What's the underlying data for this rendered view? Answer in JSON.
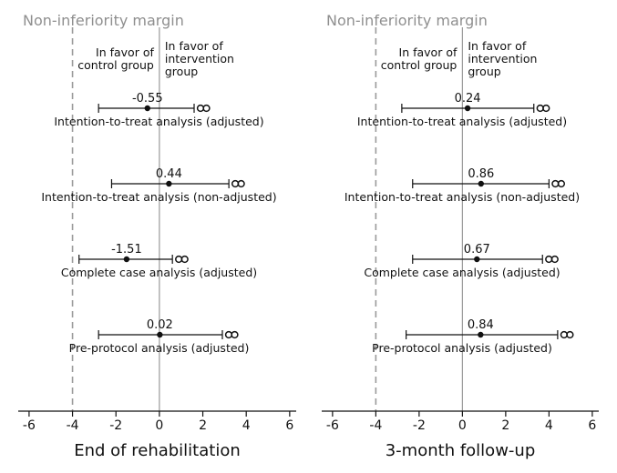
{
  "chart_data": [
    {
      "type": "forest",
      "title": "End of rehabilitation",
      "margin_label": "Non-inferiority margin",
      "margin_value": -4,
      "favor_left": "In favor of\ncontrol group",
      "favor_right": "In favor of\nintervention\ngroup",
      "xlim": [
        -6.5,
        6.3
      ],
      "xticks": [
        -6,
        -4,
        -2,
        0,
        2,
        4,
        6
      ],
      "xtick_labels": [
        "-6",
        "-4",
        "-2",
        "0",
        "2",
        "4",
        "6"
      ],
      "grid": false,
      "rows": [
        {
          "label": "Intention-to-treat analysis (adjusted)",
          "estimate": -0.55,
          "estimate_label": "-0.55",
          "lower": -2.8,
          "upper": 1.6,
          "upper_open": true
        },
        {
          "label": "Intention-to-treat analysis (non-adjusted)",
          "estimate": 0.44,
          "estimate_label": "0.44",
          "lower": -2.2,
          "upper": 3.2,
          "upper_open": true
        },
        {
          "label": "Complete case analysis (adjusted)",
          "estimate": -1.51,
          "estimate_label": "-1.51",
          "lower": -3.7,
          "upper": 0.6,
          "upper_open": true
        },
        {
          "label": "Pre-protocol analysis (adjusted)",
          "estimate": 0.02,
          "estimate_label": "0.02",
          "lower": -2.8,
          "upper": 2.9,
          "upper_open": true
        }
      ]
    },
    {
      "type": "forest",
      "title": "3-month follow-up",
      "margin_label": "Non-inferiority margin",
      "margin_value": -4,
      "favor_left": "In favor of\ncontrol group",
      "favor_right": "In favor of\nintervention\ngroup",
      "xlim": [
        -6.5,
        6.3
      ],
      "xticks": [
        -6,
        -4,
        -2,
        0,
        2,
        4,
        6
      ],
      "xtick_labels": [
        "-6",
        "-4",
        "-2",
        "0",
        "2",
        "4",
        "6"
      ],
      "grid": false,
      "rows": [
        {
          "label": "Intention-to-treat analysis (adjusted)",
          "estimate": 0.24,
          "estimate_label": "0.24",
          "lower": -2.8,
          "upper": 3.3,
          "upper_open": true
        },
        {
          "label": "Intention-to-treat analysis (non-adjusted)",
          "estimate": 0.86,
          "estimate_label": "0.86",
          "lower": -2.3,
          "upper": 4.0,
          "upper_open": true
        },
        {
          "label": "Complete case analysis (adjusted)",
          "estimate": 0.67,
          "estimate_label": "0.67",
          "lower": -2.3,
          "upper": 3.7,
          "upper_open": true
        },
        {
          "label": "Pre-protocol analysis (adjusted)",
          "estimate": 0.84,
          "estimate_label": "0.84",
          "lower": -2.6,
          "upper": 4.4,
          "upper_open": true
        }
      ]
    }
  ]
}
